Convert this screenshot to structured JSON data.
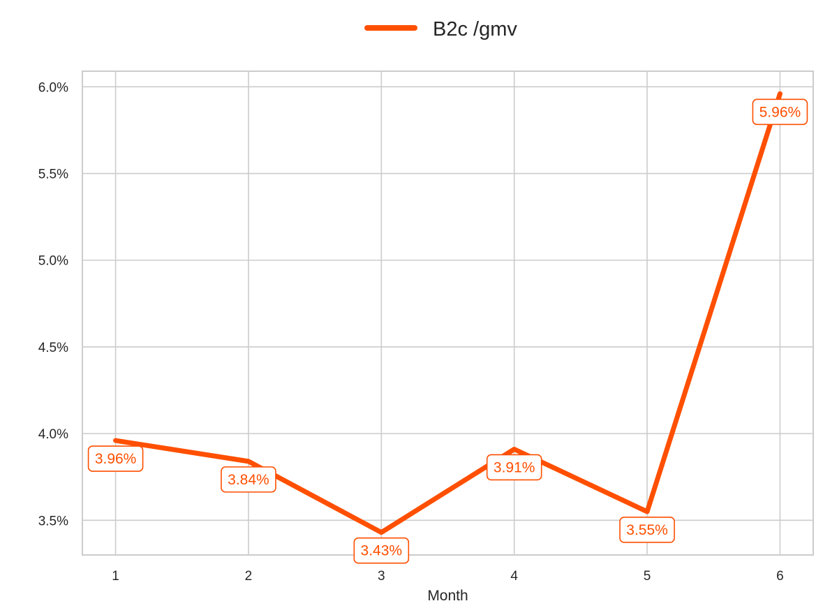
{
  "chart_data": {
    "type": "line",
    "x": [
      1,
      2,
      3,
      4,
      5,
      6
    ],
    "series": [
      {
        "name": "B2c /gmv",
        "values": [
          3.96,
          3.84,
          3.43,
          3.91,
          3.55,
          5.96
        ],
        "labels": [
          "3.96%",
          "3.84%",
          "3.43%",
          "3.91%",
          "3.55%",
          "5.96%"
        ],
        "color": "#FF4F00"
      }
    ],
    "xlabel": "Month",
    "ylabel": "",
    "x_ticks": [
      "1",
      "2",
      "3",
      "4",
      "5",
      "6"
    ],
    "y_ticks": [
      3.5,
      4.0,
      4.5,
      5.0,
      5.5,
      6.0
    ],
    "y_tick_labels": [
      "3.5%",
      "4.0%",
      "4.5%",
      "5.0%",
      "5.5%",
      "6.0%"
    ],
    "xlim": [
      0.75,
      6.25
    ],
    "ylim": [
      3.3,
      6.09
    ],
    "grid": true,
    "legend_position": "top-center",
    "grid_color": "#CCCCCC",
    "frame_color": "#CCCCCC"
  }
}
